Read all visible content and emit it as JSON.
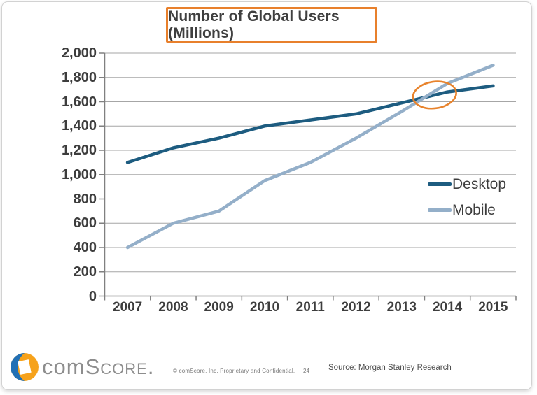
{
  "chart_data": {
    "type": "line",
    "title": "Number of Global Users (Millions)",
    "categories": [
      "2007",
      "2008",
      "2009",
      "2010",
      "2011",
      "2012",
      "2013",
      "2014",
      "2015"
    ],
    "series": [
      {
        "name": "Desktop",
        "color": "#1D5C80",
        "values": [
          1100,
          1220,
          1300,
          1400,
          1450,
          1500,
          1590,
          1680,
          1730
        ]
      },
      {
        "name": "Mobile",
        "color": "#94AFC9",
        "values": [
          400,
          600,
          700,
          950,
          1100,
          1300,
          1520,
          1750,
          1900
        ]
      }
    ],
    "xlabel": "",
    "ylabel": "",
    "ylim": [
      0,
      2000
    ],
    "ytick_values": [
      0,
      200,
      400,
      600,
      800,
      1000,
      1200,
      1400,
      1600,
      1800,
      2000
    ],
    "ytick_labels": [
      "0",
      "200",
      "400",
      "600",
      "800",
      "1,000",
      "1,200",
      "1,400",
      "1,600",
      "1,800",
      "2,000"
    ],
    "grid": true,
    "grid_color": "#A6A6A6",
    "axis_color": "#808080",
    "legend_position": "middle-right",
    "annotation": {
      "shape": "ellipse",
      "x_year": 2013.72,
      "y_value": 1655,
      "color": "#E8832C"
    }
  },
  "colors": {
    "title_border": "#E8802C",
    "desktop_line": "#1D5C80",
    "mobile_line": "#94AFC9",
    "annotation_orange": "#E8832C"
  },
  "footer": {
    "logo_pre": "com",
    "logo_rest": "Score.",
    "copyright": "© comScore, Inc.  Proprietary and Confidential.",
    "page_number": "24",
    "source": "Source: Morgan Stanley Research"
  }
}
